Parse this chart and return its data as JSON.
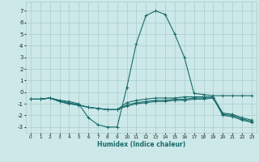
{
  "bg_color": "#cce8e8",
  "grid_color": "#aacccc",
  "line_color": "#1a6b6b",
  "xlabel": "Humidex (Indice chaleur)",
  "xlim": [
    -0.5,
    23.5
  ],
  "ylim": [
    -3.5,
    7.8
  ],
  "xticks": [
    0,
    1,
    2,
    3,
    4,
    5,
    6,
    7,
    8,
    9,
    10,
    11,
    12,
    13,
    14,
    15,
    16,
    17,
    18,
    19,
    20,
    21,
    22,
    23
  ],
  "yticks": [
    -3,
    -2,
    -1,
    0,
    1,
    2,
    3,
    4,
    5,
    6,
    7
  ],
  "curves": [
    {
      "x": [
        0,
        1,
        2,
        3,
        4,
        5,
        6,
        7,
        8,
        9,
        10,
        11,
        12,
        13,
        14,
        15,
        16,
        17,
        18,
        19,
        20,
        21,
        22,
        23
      ],
      "y": [
        -0.6,
        -0.6,
        -0.5,
        -0.7,
        -0.8,
        -1.0,
        -2.2,
        -2.8,
        -3.0,
        -3.0,
        0.4,
        4.2,
        6.6,
        7.0,
        6.7,
        5.0,
        3.0,
        -0.1,
        -0.2,
        -0.3,
        -0.3,
        -0.3,
        -0.3,
        -0.3
      ]
    },
    {
      "x": [
        0,
        1,
        2,
        3,
        4,
        5,
        6,
        7,
        8,
        9,
        10,
        11,
        12,
        13,
        14,
        15,
        16,
        17,
        18,
        19,
        20,
        21,
        22,
        23
      ],
      "y": [
        -0.6,
        -0.6,
        -0.5,
        -0.7,
        -0.9,
        -1.1,
        -1.3,
        -1.4,
        -1.5,
        -1.5,
        -0.9,
        -0.7,
        -0.6,
        -0.5,
        -0.5,
        -0.5,
        -0.4,
        -0.4,
        -0.4,
        -0.4,
        -1.8,
        -1.9,
        -2.2,
        -2.4
      ]
    },
    {
      "x": [
        0,
        1,
        2,
        3,
        4,
        5,
        6,
        7,
        8,
        9,
        10,
        11,
        12,
        13,
        14,
        15,
        16,
        17,
        18,
        19,
        20,
        21,
        22,
        23
      ],
      "y": [
        -0.6,
        -0.6,
        -0.5,
        -0.8,
        -1.0,
        -1.1,
        -1.3,
        -1.4,
        -1.5,
        -1.5,
        -1.1,
        -0.9,
        -0.8,
        -0.7,
        -0.7,
        -0.6,
        -0.6,
        -0.5,
        -0.5,
        -0.5,
        -1.9,
        -2.0,
        -2.3,
        -2.5
      ]
    },
    {
      "x": [
        0,
        1,
        2,
        3,
        4,
        5,
        6,
        7,
        8,
        9,
        10,
        11,
        12,
        13,
        14,
        15,
        16,
        17,
        18,
        19,
        20,
        21,
        22,
        23
      ],
      "y": [
        -0.6,
        -0.6,
        -0.5,
        -0.8,
        -1.0,
        -1.1,
        -1.3,
        -1.4,
        -1.5,
        -1.5,
        -1.2,
        -1.0,
        -0.9,
        -0.8,
        -0.8,
        -0.7,
        -0.7,
        -0.6,
        -0.6,
        -0.5,
        -2.0,
        -2.1,
        -2.4,
        -2.6
      ]
    }
  ]
}
